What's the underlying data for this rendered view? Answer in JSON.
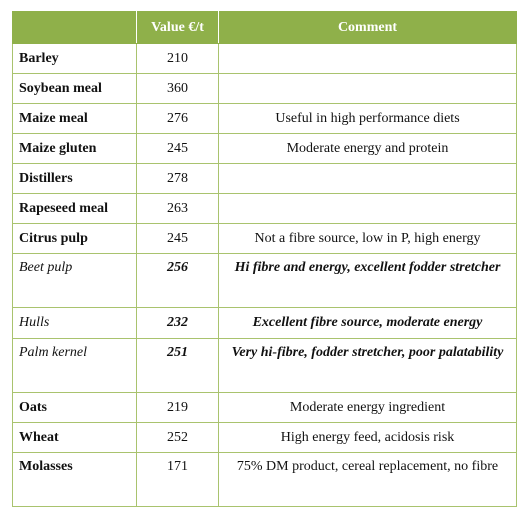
{
  "table": {
    "headers": {
      "feed": "",
      "value": "Value €/t",
      "comment": "Comment"
    },
    "rows": [
      {
        "feed": "Barley",
        "value": "210",
        "comment": ""
      },
      {
        "feed": "Soybean meal",
        "value": "360",
        "comment": ""
      },
      {
        "feed": "Maize meal",
        "value": "276",
        "comment": "Useful in high performance diets"
      },
      {
        "feed": "Maize gluten",
        "value": "245",
        "comment": "Moderate energy and protein"
      },
      {
        "feed": "Distillers",
        "value": "278",
        "comment": ""
      },
      {
        "feed": "Rapeseed meal",
        "value": "263",
        "comment": ""
      },
      {
        "feed": "Citrus pulp",
        "value": "245",
        "comment": "Not a fibre source, low in P, high energy"
      },
      {
        "feed": "Beet pulp",
        "value": "256",
        "comment": "Hi fibre and energy, excellent fodder stretcher"
      },
      {
        "feed": "Hulls",
        "value": "232",
        "comment": "Excellent fibre source, moderate energy"
      },
      {
        "feed": "Palm kernel",
        "value": "251",
        "comment": "Very hi-fibre, fodder stretcher, poor palatability"
      },
      {
        "feed": "Oats",
        "value": "219",
        "comment": "Moderate energy ingredient"
      },
      {
        "feed": "Wheat",
        "value": "252",
        "comment": "High energy feed,  acidosis risk"
      },
      {
        "feed": "Molasses",
        "value": "171",
        "comment": "75% DM product, cereal replacement, no fibre"
      }
    ]
  },
  "colors": {
    "header_bg": "#8fb04a",
    "border": "#a9c36e",
    "header_text": "#ffffff"
  }
}
